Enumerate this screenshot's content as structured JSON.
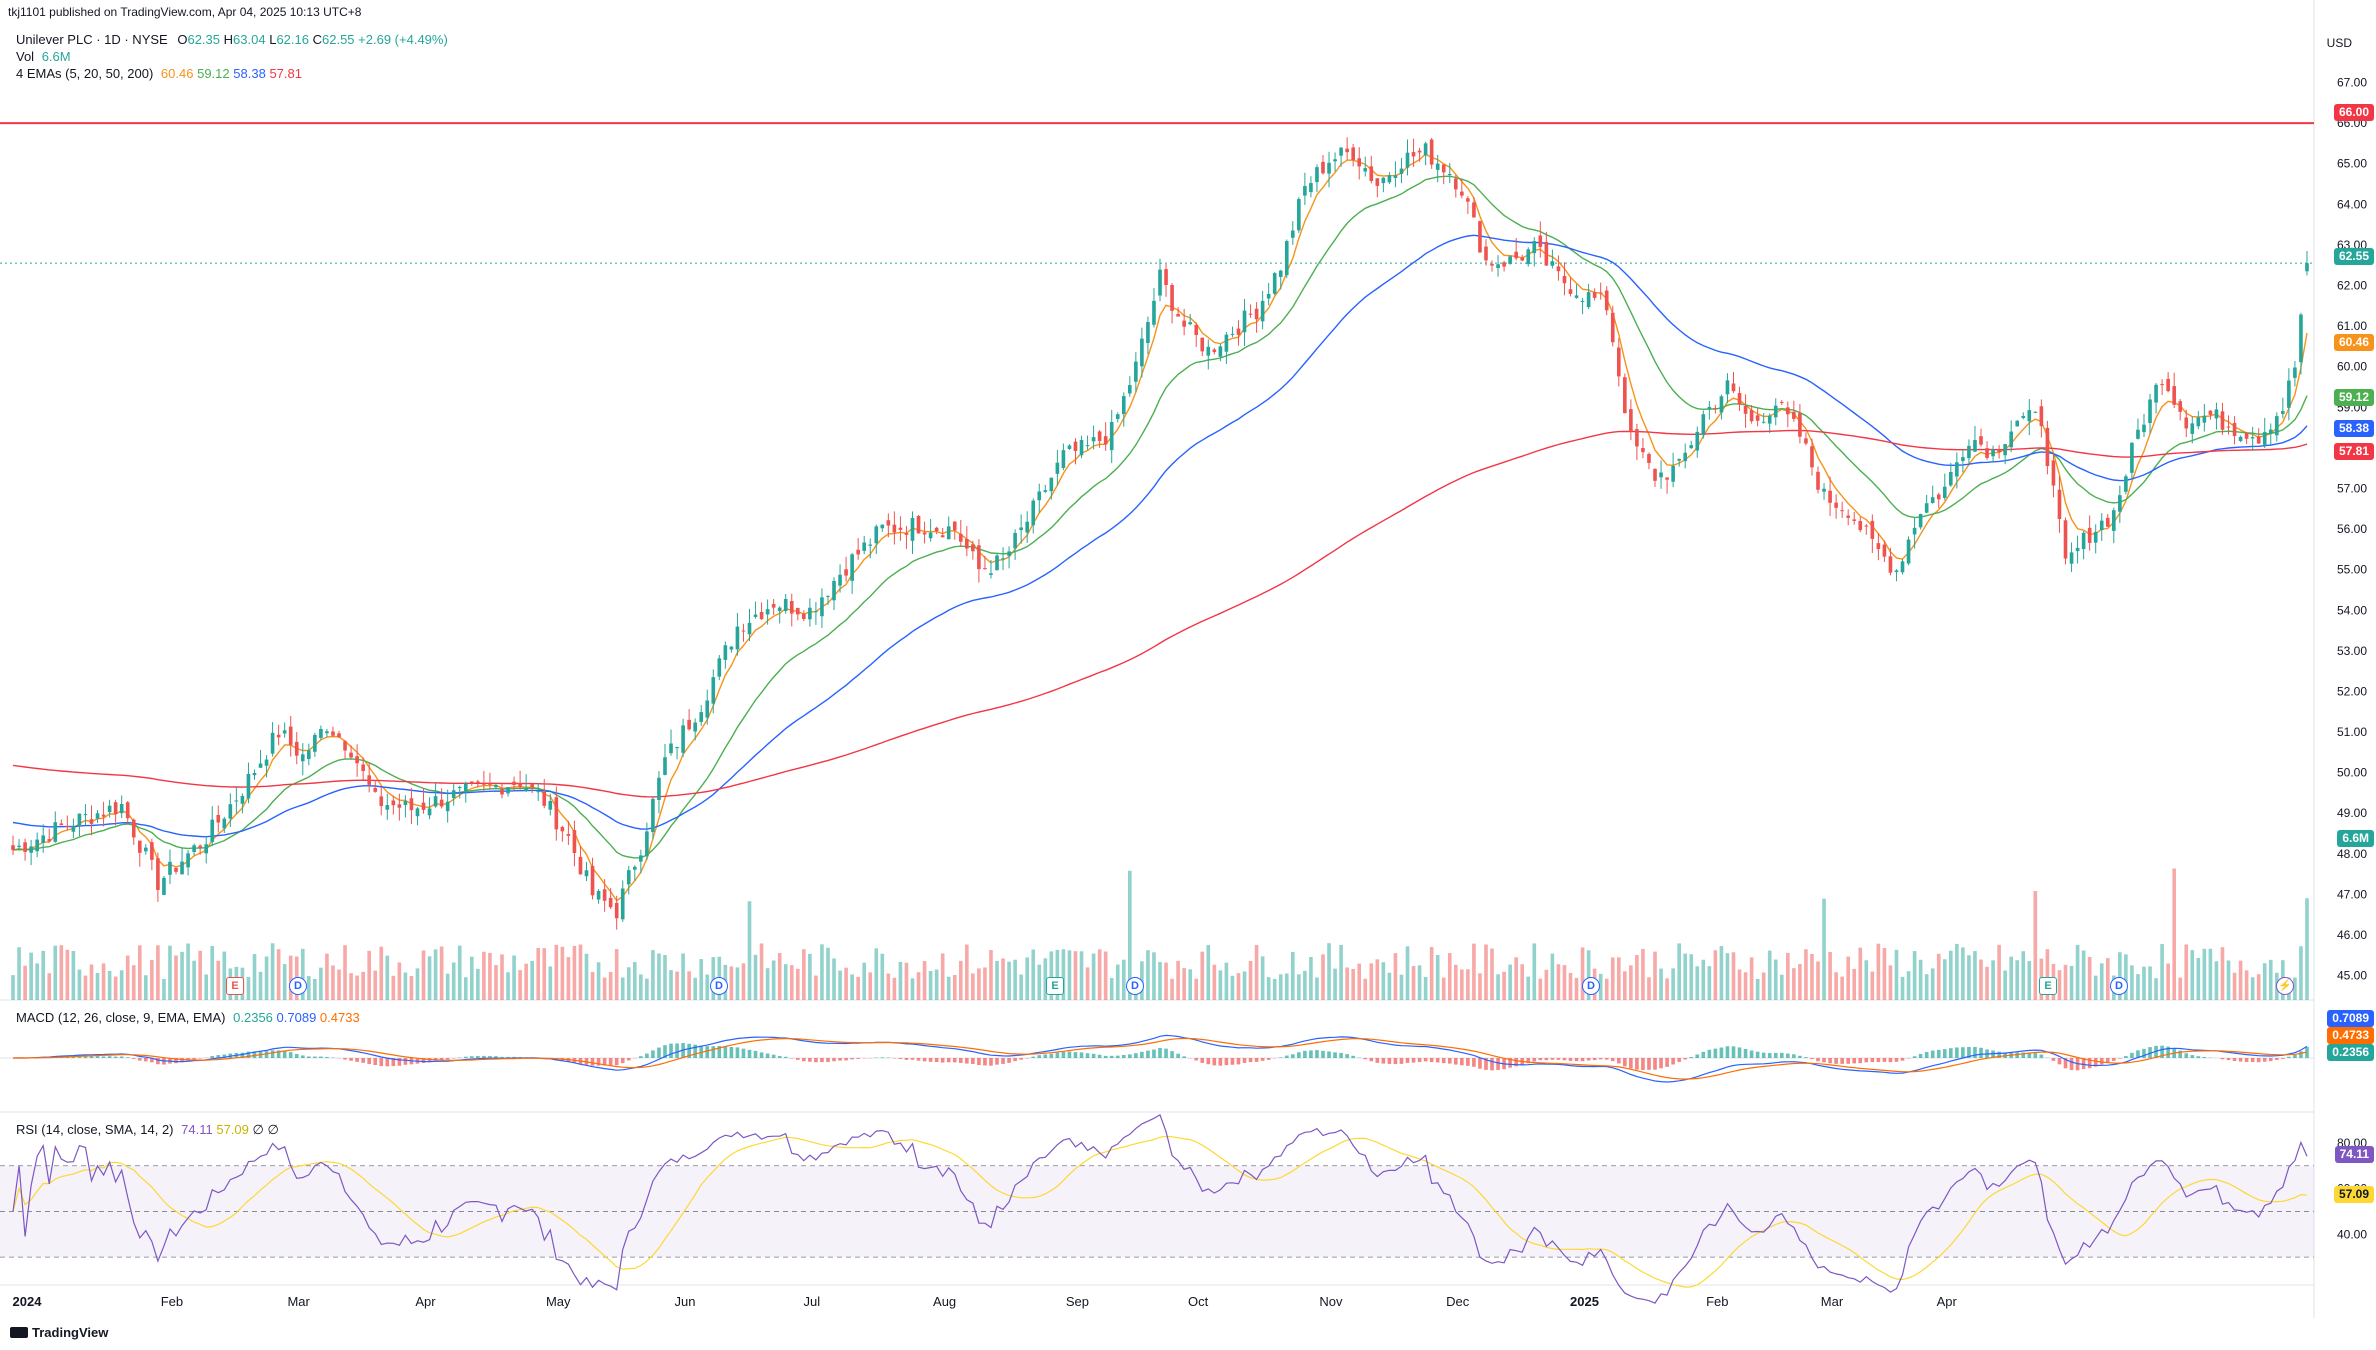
{
  "publisher_line": "tkj1101 published on TradingView.com, Apr 04, 2025 10:13 UTC+8",
  "footer_logo": "TradingView",
  "header": {
    "symbol_line": "Unilever PLC · 1D · NYSE",
    "ohlc": {
      "o_label": "O",
      "o": "62.35",
      "h_label": "H",
      "h": "63.04",
      "l_label": "L",
      "l": "62.16",
      "c_label": "C",
      "c": "62.55",
      "change": "+2.69 (+4.49%)"
    },
    "vol_label": "Vol",
    "vol_value": "6.6M",
    "ema_label": "4 EMAs (5, 20, 50, 200)",
    "ema_values": [
      "60.46",
      "59.12",
      "58.38",
      "57.81"
    ]
  },
  "currency": "USD",
  "macd_label": "MACD (12, 26, close, 9, EMA, EMA)",
  "macd_values": [
    "0.2356",
    "0.7089",
    "0.4733"
  ],
  "rsi_label": "RSI (14, close, SMA, 14, 2)",
  "rsi_values": [
    "74.11",
    "57.09",
    "∅",
    "∅"
  ],
  "price_tags": {
    "resistance": "66.00",
    "last": "62.55",
    "ema5": "60.46",
    "ema20": "59.12",
    "ema50": "58.38",
    "ema200": "57.81",
    "volume": "6.6M"
  },
  "macd_tags": [
    "0.7089",
    "0.4733",
    "0.2356"
  ],
  "rsi_tags": [
    "74.11",
    "57.09"
  ],
  "colors": {
    "up": "#26a69a",
    "down": "#ef5350",
    "ema5": "#f7931a",
    "ema20": "#4caf50",
    "ema50": "#2962ff",
    "ema200": "#f23645",
    "macd": "#2962ff",
    "signal": "#ff6d00",
    "rsi": "#7e57c2",
    "rsi_ma": "#fdd835"
  },
  "events": [
    "E",
    "D",
    "D",
    "E",
    "D",
    "D",
    "E",
    "D"
  ],
  "chart_data": {
    "type": "candlestick",
    "price_axis_ticks": [
      "67.00",
      "66.00",
      "65.00",
      "64.00",
      "63.00",
      "62.00",
      "61.00",
      "60.00",
      "59.00",
      "58.00",
      "57.00",
      "56.00",
      "55.00",
      "54.00",
      "53.00",
      "52.00",
      "51.00",
      "50.00",
      "49.00",
      "48.00",
      "47.00",
      "46.00",
      "45.00"
    ],
    "month_labels": [
      "2024",
      "Feb",
      "Mar",
      "Apr",
      "May",
      "Jun",
      "Jul",
      "Aug",
      "Sep",
      "Oct",
      "Nov",
      "Dec",
      "2025",
      "Feb",
      "Mar",
      "Apr"
    ],
    "resistance_level": 66.0,
    "ylim": [
      44.4,
      67.8
    ],
    "rsi_ticks": [
      "80.00",
      "60.00",
      "40.00"
    ],
    "macd_zero_tick": "0.0000",
    "price_path_approx": [
      [
        0,
        48.1
      ],
      [
        10,
        48.8
      ],
      [
        18,
        49.2
      ],
      [
        24,
        47.3
      ],
      [
        32,
        48.4
      ],
      [
        38,
        49.6
      ],
      [
        44,
        51.0
      ],
      [
        48,
        50.4
      ],
      [
        52,
        51.2
      ],
      [
        56,
        50.6
      ],
      [
        60,
        49.3
      ],
      [
        66,
        49.1
      ],
      [
        72,
        49.4
      ],
      [
        78,
        49.6
      ],
      [
        84,
        49.8
      ],
      [
        88,
        49.3
      ],
      [
        92,
        48.4
      ],
      [
        96,
        47.0
      ],
      [
        100,
        46.6
      ],
      [
        104,
        48.2
      ],
      [
        108,
        50.3
      ],
      [
        114,
        51.7
      ],
      [
        120,
        53.6
      ],
      [
        126,
        54.2
      ],
      [
        132,
        54.0
      ],
      [
        138,
        55.1
      ],
      [
        144,
        56.0
      ],
      [
        150,
        56.1
      ],
      [
        156,
        56.0
      ],
      [
        160,
        55.0
      ],
      [
        164,
        55.2
      ],
      [
        168,
        56.2
      ],
      [
        174,
        57.8
      ],
      [
        178,
        58.0
      ],
      [
        182,
        58.4
      ],
      [
        186,
        60.0
      ],
      [
        190,
        62.2
      ],
      [
        194,
        61.0
      ],
      [
        198,
        60.4
      ],
      [
        202,
        60.9
      ],
      [
        206,
        61.4
      ],
      [
        210,
        62.5
      ],
      [
        214,
        64.4
      ],
      [
        218,
        65.1
      ],
      [
        222,
        65.3
      ],
      [
        226,
        64.5
      ],
      [
        230,
        65.1
      ],
      [
        234,
        65.3
      ],
      [
        238,
        64.8
      ],
      [
        240,
        64.4
      ],
      [
        244,
        62.6
      ],
      [
        248,
        62.6
      ],
      [
        252,
        62.9
      ],
      [
        256,
        62.2
      ],
      [
        260,
        61.8
      ],
      [
        264,
        61.5
      ],
      [
        268,
        58.2
      ],
      [
        272,
        57.3
      ],
      [
        276,
        57.5
      ],
      [
        280,
        58.8
      ],
      [
        284,
        59.5
      ],
      [
        288,
        58.6
      ],
      [
        292,
        59.1
      ],
      [
        296,
        58.3
      ],
      [
        300,
        56.8
      ],
      [
        304,
        56.5
      ],
      [
        308,
        55.6
      ],
      [
        312,
        55.0
      ],
      [
        316,
        56.5
      ],
      [
        320,
        57.0
      ],
      [
        324,
        58.3
      ],
      [
        328,
        57.9
      ],
      [
        332,
        58.7
      ],
      [
        336,
        58.7
      ],
      [
        340,
        55.1
      ],
      [
        344,
        55.9
      ],
      [
        348,
        56.4
      ],
      [
        352,
        58.4
      ],
      [
        356,
        59.8
      ],
      [
        360,
        58.7
      ],
      [
        364,
        58.8
      ],
      [
        368,
        58.5
      ],
      [
        372,
        58.3
      ],
      [
        376,
        59.0
      ],
      [
        378,
        60.0
      ],
      [
        380,
        62.55
      ]
    ],
    "volume_last": "6.6M",
    "macd_last": {
      "hist": 0.2356,
      "macd": 0.7089,
      "signal": 0.4733
    },
    "rsi_last": {
      "rsi": 74.11,
      "ma": 57.09
    }
  }
}
